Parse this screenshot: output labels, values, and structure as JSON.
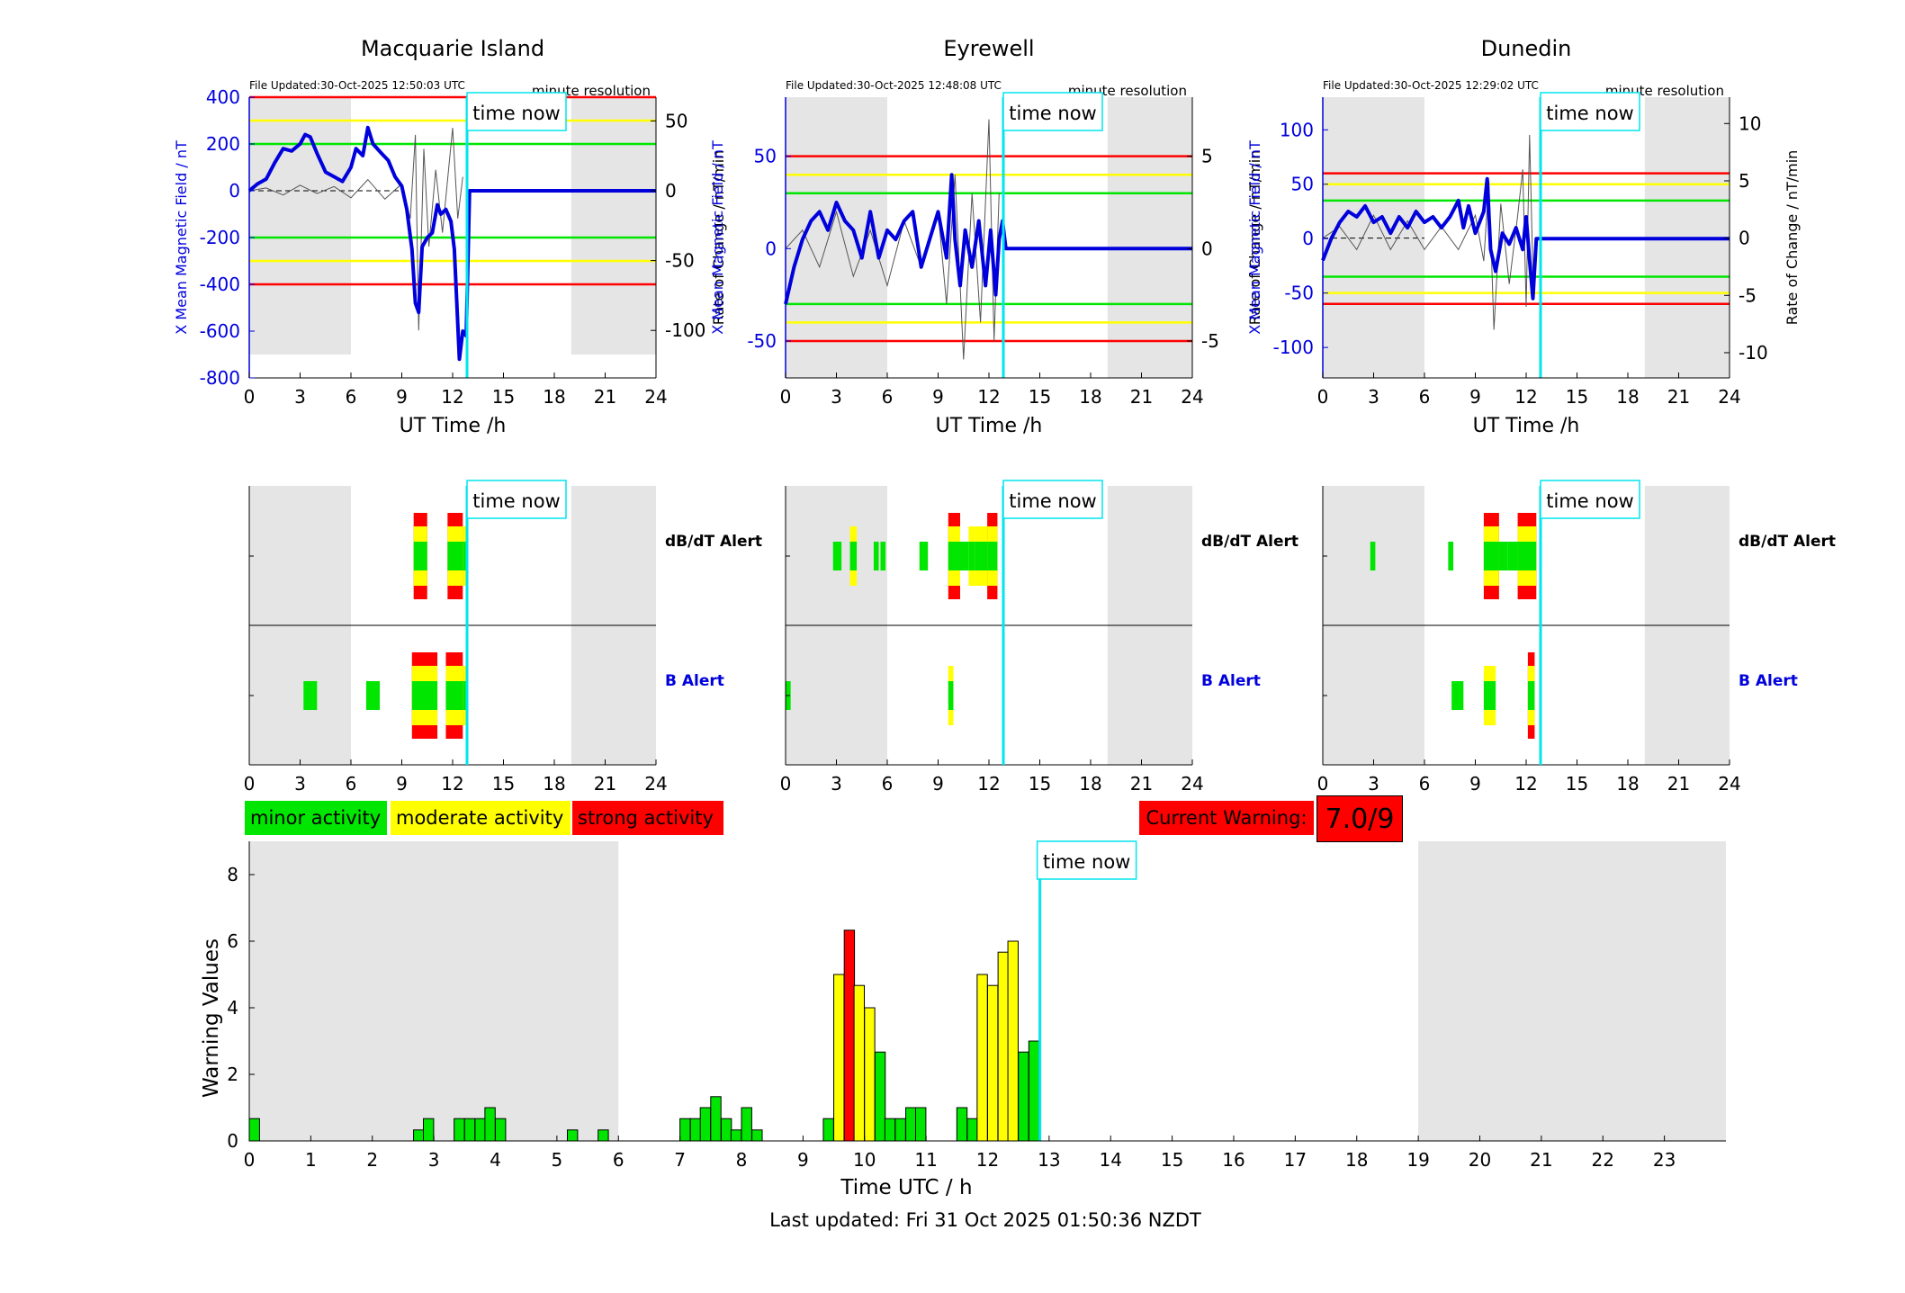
{
  "stations": [
    {
      "name": "Macquarie Island",
      "file_updated": "File Updated:30-Oct-2025 12:50:03 UTC",
      "resolution": "minute resolution",
      "time_now_label": "time now",
      "xlabel": "UT Time /h",
      "ylabel_left": "X Mean Magnetic Field / nT",
      "ylabel_right": "Rate of Change / nT/min",
      "alert_dbdt_label": "dB/dT Alert",
      "alert_b_label": "B Alert"
    },
    {
      "name": "Eyrewell",
      "file_updated": "File Updated:30-Oct-2025 12:48:08 UTC",
      "resolution": "minute resolution",
      "time_now_label": "time now",
      "xlabel": "UT Time /h",
      "ylabel_left": "X Mean Magnetic Field / nT",
      "ylabel_right": "Rate of Change / nT/min",
      "alert_dbdt_label": "dB/dT Alert",
      "alert_b_label": "B Alert"
    },
    {
      "name": "Dunedin",
      "file_updated": "File Updated:30-Oct-2025 12:29:02 UTC",
      "resolution": "minute resolution",
      "time_now_label": "time now",
      "xlabel": "UT Time /h",
      "ylabel_left": "X Mean Magnetic Field / nT",
      "ylabel_right": "Rate of Change / nT/min",
      "alert_dbdt_label": "dB/dT Alert",
      "alert_b_label": "B Alert"
    }
  ],
  "legend": {
    "minor": "minor activity",
    "moderate": "moderate activity",
    "strong": "strong activity",
    "minor_color": "#00e600",
    "moderate_color": "#ffff00",
    "strong_color": "#ff0000"
  },
  "current_warning": {
    "label": "Current Warning:",
    "value": "7.0/9"
  },
  "footer": "Last updated: Fri 31 Oct 2025 01:50:36 NZDT",
  "colors": {
    "night_shade": "#e5e5e5",
    "time_now_line": "#00e5ee",
    "field_line": "#0000dd",
    "roc_line": "#555555",
    "red_threshold": "#ff0000",
    "yellow_threshold": "#ffff00",
    "green_threshold": "#00e600"
  },
  "chart_data": [
    {
      "type": "line",
      "title": "Macquarie Island",
      "xlabel": "UT Time /h",
      "ylabel": "X Mean Magnetic Field / nT",
      "y2label": "Rate of Change / nT/min",
      "xlim": [
        0,
        24
      ],
      "ylim": [
        -800,
        400
      ],
      "y2lim": [
        -134,
        67
      ],
      "xticks": [
        0,
        3,
        6,
        9,
        12,
        15,
        18,
        21,
        24
      ],
      "yticks": [
        -800,
        -600,
        -400,
        -200,
        0,
        200,
        400
      ],
      "y2ticks": [
        -100,
        -50,
        0,
        50
      ],
      "night_shading_h": [
        [
          0,
          6
        ],
        [
          19,
          24
        ]
      ],
      "night_shading_ylim": -700,
      "time_now_h": 12.85,
      "thresholds_nT": {
        "red": [
          400,
          -400
        ],
        "yellow": [
          300,
          -300
        ],
        "green": [
          200,
          -200
        ]
      },
      "field_series": {
        "name": "X Mean Magnetic Field",
        "x": [
          0,
          0.5,
          1.0,
          1.5,
          2.0,
          2.5,
          3.0,
          3.3,
          3.6,
          4.0,
          4.5,
          5.0,
          5.5,
          6.0,
          6.3,
          6.7,
          7.0,
          7.3,
          7.8,
          8.2,
          8.6,
          9.0,
          9.3,
          9.6,
          9.8,
          10.0,
          10.2,
          10.5,
          10.8,
          11.1,
          11.3,
          11.6,
          11.9,
          12.1,
          12.4,
          12.6,
          12.8,
          13,
          24
        ],
        "y": [
          0,
          30,
          50,
          120,
          180,
          170,
          200,
          240,
          230,
          160,
          80,
          60,
          40,
          100,
          180,
          150,
          270,
          200,
          160,
          130,
          60,
          20,
          -80,
          -250,
          -480,
          -520,
          -240,
          -200,
          -180,
          -60,
          -100,
          -80,
          -130,
          -250,
          -720,
          -600,
          -620,
          0,
          0
        ]
      },
      "roc_series": {
        "name": "Rate of Change",
        "x": [
          0,
          1,
          2,
          3,
          4,
          5,
          6,
          7,
          8,
          9,
          9.5,
          9.8,
          10.0,
          10.3,
          10.6,
          11.0,
          11.4,
          11.8,
          12.0,
          12.3,
          12.6
        ],
        "y": [
          0,
          2,
          -3,
          4,
          -2,
          3,
          -5,
          8,
          -6,
          5,
          -20,
          40,
          -100,
          30,
          -40,
          15,
          -30,
          20,
          45,
          -20,
          10
        ]
      },
      "roc_zero_line_h": [
        0,
        9
      ]
    },
    {
      "type": "line",
      "title": "Eyrewell",
      "xlabel": "UT Time /h",
      "ylabel": "X Mean Magnetic Field / nT",
      "y2label": "Rate of Change / nT/min",
      "xlim": [
        0,
        24
      ],
      "ylim": [
        -70,
        82
      ],
      "y2lim": [
        -7,
        8.2
      ],
      "xticks": [
        0,
        3,
        6,
        9,
        12,
        15,
        18,
        21,
        24
      ],
      "yticks": [
        -50,
        0,
        50
      ],
      "y2ticks": [
        -5,
        0,
        5
      ],
      "night_shading_h": [
        [
          0,
          6
        ],
        [
          19,
          24
        ]
      ],
      "night_shading_ylim": -70,
      "time_now_h": 12.85,
      "thresholds_nT": {
        "red": [
          50,
          -50
        ],
        "yellow": [
          40,
          -40
        ],
        "green": [
          30,
          -30
        ]
      },
      "field_series": {
        "name": "X Mean Magnetic Field",
        "x": [
          0,
          0.5,
          1.0,
          1.5,
          2.0,
          2.5,
          3.0,
          3.5,
          4.0,
          4.5,
          5.0,
          5.5,
          6.0,
          6.5,
          7.0,
          7.5,
          8.0,
          8.5,
          9.0,
          9.5,
          9.8,
          10.0,
          10.3,
          10.6,
          11.0,
          11.4,
          11.8,
          12.1,
          12.4,
          12.6,
          12.8,
          13,
          24
        ],
        "y": [
          -30,
          -10,
          5,
          15,
          20,
          10,
          25,
          15,
          10,
          -5,
          20,
          -5,
          10,
          5,
          15,
          20,
          -10,
          5,
          20,
          -5,
          40,
          5,
          -20,
          10,
          -10,
          15,
          -20,
          10,
          -25,
          5,
          15,
          0,
          0
        ]
      },
      "roc_series": {
        "name": "Rate of Change",
        "x": [
          0,
          1,
          2,
          3,
          4,
          5,
          6,
          7,
          8,
          9,
          9.5,
          10.0,
          10.5,
          11.0,
          11.5,
          12.0,
          12.3,
          12.6
        ],
        "y": [
          0,
          1,
          -1,
          2,
          -1.5,
          1,
          -2,
          1.5,
          -1,
          2,
          -3,
          4,
          -6,
          3,
          -4,
          7,
          -5,
          3
        ]
      },
      "roc_zero_line_h": []
    },
    {
      "type": "line",
      "title": "Dunedin",
      "xlabel": "UT Time /h",
      "ylabel": "X Mean Magnetic Field / nT",
      "y2label": "Rate of Change / nT/min",
      "xlim": [
        0,
        24
      ],
      "ylim": [
        -128,
        130
      ],
      "y2lim": [
        -12.2,
        12.3
      ],
      "xticks": [
        0,
        3,
        6,
        9,
        12,
        15,
        18,
        21,
        24
      ],
      "yticks": [
        -100,
        -50,
        0,
        50,
        100
      ],
      "y2ticks": [
        -10,
        -5,
        0,
        5,
        10
      ],
      "night_shading_h": [
        [
          0,
          6
        ],
        [
          19,
          24
        ]
      ],
      "night_shading_ylim": -128,
      "time_now_h": 12.85,
      "thresholds_nT": {
        "red": [
          60,
          -60
        ],
        "yellow": [
          50,
          -50
        ],
        "green": [
          35,
          -35
        ]
      },
      "field_series": {
        "name": "X Mean Magnetic Field",
        "x": [
          0,
          0.5,
          1.0,
          1.5,
          2.0,
          2.5,
          3.0,
          3.5,
          4.0,
          4.5,
          5.0,
          5.5,
          6.0,
          6.5,
          7.0,
          7.5,
          8.0,
          8.3,
          8.6,
          9.0,
          9.5,
          9.7,
          9.9,
          10.2,
          10.6,
          11.0,
          11.4,
          11.8,
          12.0,
          12.2,
          12.4,
          12.6,
          13,
          24
        ],
        "y": [
          -20,
          0,
          15,
          25,
          20,
          30,
          15,
          20,
          5,
          20,
          10,
          25,
          15,
          20,
          10,
          20,
          35,
          10,
          30,
          5,
          25,
          55,
          -10,
          -30,
          5,
          -5,
          10,
          -10,
          20,
          -20,
          -55,
          0,
          0,
          0
        ]
      },
      "roc_series": {
        "name": "Rate of Change",
        "x": [
          0,
          1,
          2,
          3,
          4,
          5,
          6,
          7,
          8,
          9,
          9.5,
          9.8,
          10.1,
          10.5,
          11.0,
          11.5,
          11.8,
          12.0,
          12.2,
          12.4
        ],
        "y": [
          0,
          1,
          -1,
          2,
          -1,
          1.5,
          -1,
          1,
          -1,
          2,
          -2,
          5,
          -8,
          3,
          -4,
          2,
          6,
          -6,
          9,
          -3
        ]
      },
      "roc_zero_line_h": [
        0,
        6
      ]
    },
    {
      "type": "bar",
      "title": "",
      "subtype": "alert_timeline",
      "stations": [
        "Macquarie Island",
        "Eyrewell",
        "Dunedin"
      ],
      "rows": [
        "dB/dT Alert",
        "B Alert"
      ],
      "xlim": [
        0,
        24
      ],
      "xticks": [
        0,
        3,
        6,
        9,
        12,
        15,
        18,
        21,
        24
      ],
      "level_legend": {
        "1": "minor activity",
        "2": "moderate activity",
        "3": "strong activity"
      },
      "time_now_h": 12.85,
      "night_shading_h": [
        [
          0,
          6
        ],
        [
          19,
          24
        ]
      ],
      "alerts": [
        {
          "station": "Macquarie Island",
          "dbdt": [
            [
              9.7,
              10.5,
              3
            ],
            [
              11.7,
              12.6,
              3
            ],
            [
              12.6,
              12.85,
              2
            ]
          ],
          "b": [
            [
              3.2,
              4.0,
              1
            ],
            [
              6.9,
              7.7,
              1
            ],
            [
              9.6,
              11.1,
              3
            ],
            [
              11.6,
              12.6,
              3
            ],
            [
              12.6,
              12.85,
              2
            ]
          ]
        },
        {
          "station": "Eyrewell",
          "dbdt": [
            [
              2.8,
              3.3,
              1
            ],
            [
              3.8,
              4.2,
              2
            ],
            [
              5.2,
              5.5,
              1
            ],
            [
              5.6,
              5.9,
              1
            ],
            [
              7.9,
              8.4,
              1
            ],
            [
              9.6,
              10.3,
              3
            ],
            [
              10.3,
              10.8,
              1
            ],
            [
              10.8,
              11.2,
              2
            ],
            [
              11.2,
              11.9,
              2
            ],
            [
              11.9,
              12.5,
              3
            ]
          ],
          "b": [
            [
              0,
              0.3,
              1
            ],
            [
              9.6,
              9.9,
              2
            ]
          ]
        },
        {
          "station": "Dunedin",
          "dbdt": [
            [
              2.8,
              3.1,
              1
            ],
            [
              7.4,
              7.7,
              1
            ],
            [
              9.5,
              10.4,
              3
            ],
            [
              10.4,
              10.9,
              1
            ],
            [
              10.9,
              11.5,
              1
            ],
            [
              11.5,
              12.6,
              3
            ]
          ],
          "b": [
            [
              7.6,
              8.3,
              1
            ],
            [
              9.5,
              10.2,
              2
            ],
            [
              12.1,
              12.5,
              3
            ]
          ]
        }
      ]
    },
    {
      "type": "bar",
      "title": "",
      "xlabel": "Time UTC / h",
      "ylabel": "Warning Values",
      "xlim": [
        0,
        24
      ],
      "ylim": [
        0,
        9
      ],
      "xticks": [
        0,
        1,
        2,
        3,
        4,
        5,
        6,
        7,
        8,
        9,
        10,
        11,
        12,
        13,
        14,
        15,
        16,
        17,
        18,
        19,
        20,
        21,
        22,
        23
      ],
      "yticks": [
        0,
        2,
        4,
        6,
        8
      ],
      "night_shading_h": [
        [
          0,
          6
        ],
        [
          19,
          24
        ]
      ],
      "time_now_h": 12.85,
      "bar_width_h": 0.1667,
      "x": [
        0.0,
        2.67,
        2.83,
        3.33,
        3.5,
        3.67,
        3.83,
        4.0,
        5.17,
        5.67,
        7.0,
        7.17,
        7.33,
        7.5,
        7.67,
        7.83,
        8.0,
        8.17,
        9.33,
        9.5,
        9.67,
        9.83,
        10.0,
        10.17,
        10.33,
        10.5,
        10.67,
        10.83,
        11.5,
        11.67,
        11.83,
        12.0,
        12.17,
        12.33,
        12.5,
        12.67
      ],
      "values": [
        0.67,
        0.33,
        0.67,
        0.67,
        0.67,
        0.67,
        1.0,
        0.67,
        0.33,
        0.33,
        0.67,
        0.67,
        1.0,
        1.33,
        0.67,
        0.33,
        1.0,
        0.33,
        0.67,
        5.0,
        6.33,
        4.67,
        4.0,
        2.67,
        0.67,
        0.67,
        1.0,
        1.0,
        1.0,
        0.67,
        5.0,
        4.67,
        5.67,
        6.0,
        2.67,
        3.0
      ],
      "levels": [
        1,
        1,
        1,
        1,
        1,
        1,
        1,
        1,
        1,
        1,
        1,
        1,
        1,
        1,
        1,
        1,
        1,
        1,
        1,
        2,
        3,
        2,
        2,
        1,
        1,
        1,
        1,
        1,
        1,
        1,
        2,
        2,
        2,
        2,
        1,
        1
      ]
    }
  ]
}
